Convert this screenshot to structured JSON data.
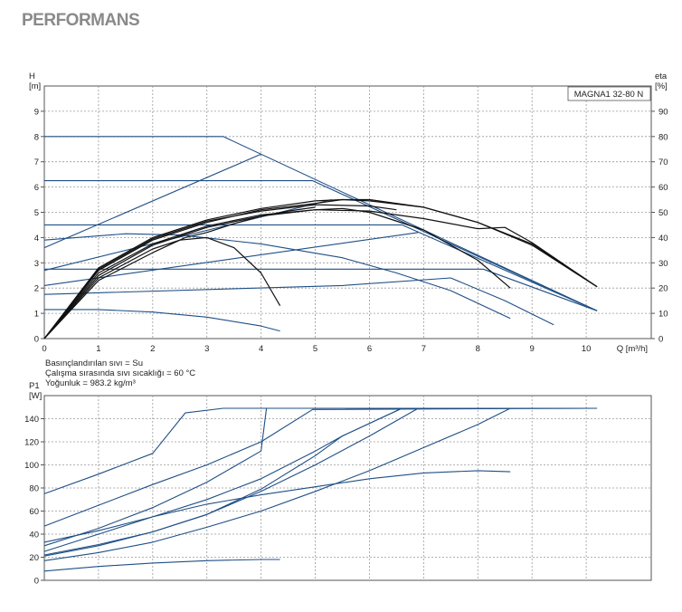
{
  "page": {
    "title": "PERFORMANS"
  },
  "conditions": [
    "Basınçlandırılan sıvı = Su",
    "Çalışma sırasında sıvı sıcaklığı = 60 °C",
    "Yoğunluk = 983.2 kg/m³"
  ],
  "colors": {
    "curve_blue": "#1f4f86",
    "curve_black": "#111111",
    "grid": "#999999"
  },
  "chart_data": [
    {
      "type": "line",
      "id": "head-chart",
      "model_label": "MAGNA1 32-80 N",
      "ylabel": "H\n[m]",
      "y2label": "eta\n[%]",
      "xlabel": "Q [m³/h]",
      "xlim": [
        0,
        11.2
      ],
      "ylim": [
        0,
        10
      ],
      "y2lim": [
        0,
        100
      ],
      "x_ticks": [
        0,
        1,
        2,
        3,
        4,
        5,
        6,
        7,
        8,
        9,
        10
      ],
      "y_ticks": [
        0,
        1,
        2,
        3,
        4,
        5,
        6,
        7,
        8,
        9
      ],
      "y2_ticks": [
        0,
        10,
        20,
        30,
        40,
        50,
        60,
        70,
        80,
        90
      ],
      "grid": true,
      "series": [
        {
          "color": "#1f4f86",
          "points": [
            [
              0,
              8.0
            ],
            [
              3.3,
              8.0
            ],
            [
              10.2,
              1.1
            ]
          ]
        },
        {
          "color": "#1f4f86",
          "points": [
            [
              0,
              6.25
            ],
            [
              4.95,
              6.25
            ],
            [
              10.2,
              1.1
            ]
          ]
        },
        {
          "color": "#1f4f86",
          "points": [
            [
              0,
              4.5
            ],
            [
              6.6,
              4.5
            ],
            [
              10.2,
              1.1
            ]
          ]
        },
        {
          "color": "#1f4f86",
          "points": [
            [
              0,
              2.75
            ],
            [
              8.1,
              2.75
            ],
            [
              10.2,
              1.1
            ]
          ]
        },
        {
          "color": "#1f4f86",
          "points": [
            [
              0,
              3.9
            ],
            [
              1.5,
              4.15
            ],
            [
              2.5,
              4.1
            ],
            [
              4,
              3.75
            ],
            [
              5.5,
              3.2
            ],
            [
              6.5,
              2.6
            ],
            [
              7.5,
              1.9
            ],
            [
              8.6,
              0.8
            ]
          ]
        },
        {
          "color": "#1f4f86",
          "points": [
            [
              0,
              1.15
            ],
            [
              1,
              1.15
            ],
            [
              2,
              1.05
            ],
            [
              3,
              0.85
            ],
            [
              4,
              0.5
            ],
            [
              4.35,
              0.3
            ]
          ]
        },
        {
          "color": "#1f4f86",
          "points": [
            [
              0,
              3.6
            ],
            [
              4.0,
              7.3
            ]
          ]
        },
        {
          "color": "#1f4f86",
          "points": [
            [
              0,
              2.7
            ],
            [
              5.3,
              5.5
            ]
          ]
        },
        {
          "color": "#1f4f86",
          "points": [
            [
              0,
              2.1
            ],
            [
              6.9,
              4.2
            ]
          ]
        },
        {
          "color": "#1f4f86",
          "points": [
            [
              0,
              1.75
            ],
            [
              5.5,
              2.1
            ],
            [
              7.5,
              2.4
            ],
            [
              8.5,
              1.5
            ],
            [
              9.4,
              0.55
            ]
          ]
        },
        {
          "color": "#111111",
          "points": [
            [
              0,
              0
            ],
            [
              1,
              2.6
            ],
            [
              2,
              3.75
            ],
            [
              3,
              4.45
            ],
            [
              4,
              4.9
            ],
            [
              5,
              5.1
            ],
            [
              6,
              5.05
            ],
            [
              7,
              4.75
            ],
            [
              8,
              4.35
            ],
            [
              8.5,
              4.4
            ],
            [
              9,
              3.8
            ],
            [
              10.2,
              2.05
            ]
          ]
        },
        {
          "color": "#111111",
          "points": [
            [
              0,
              0
            ],
            [
              1,
              2.7
            ],
            [
              2,
              3.9
            ],
            [
              3,
              4.6
            ],
            [
              4,
              5.1
            ],
            [
              5,
              5.35
            ],
            [
              5.5,
              5.5
            ],
            [
              6,
              5.5
            ],
            [
              7,
              5.2
            ],
            [
              8,
              4.6
            ],
            [
              9,
              3.7
            ],
            [
              10.2,
              2.05
            ]
          ]
        },
        {
          "color": "#111111",
          "points": [
            [
              0,
              0
            ],
            [
              1,
              2.8
            ],
            [
              2,
              4.0
            ],
            [
              3,
              4.7
            ],
            [
              4,
              5.15
            ],
            [
              5,
              5.45
            ],
            [
              5.5,
              5.5
            ],
            [
              6,
              5.45
            ],
            [
              7,
              5.2
            ],
            [
              8,
              4.6
            ],
            [
              9,
              3.75
            ],
            [
              10.2,
              2.05
            ]
          ]
        },
        {
          "color": "#111111",
          "points": [
            [
              0,
              0
            ],
            [
              1,
              2.5
            ],
            [
              2,
              3.7
            ],
            [
              3,
              4.4
            ],
            [
              4,
              4.85
            ],
            [
              5,
              5.1
            ],
            [
              5.5,
              5.15
            ],
            [
              6,
              5.0
            ],
            [
              7,
              4.3
            ],
            [
              8,
              3.1
            ],
            [
              8.6,
              2.0
            ]
          ]
        },
        {
          "color": "#111111",
          "points": [
            [
              0,
              0
            ],
            [
              1,
              2.3
            ],
            [
              2,
              3.4
            ],
            [
              2.6,
              4.0
            ],
            [
              3,
              4.2
            ],
            [
              3.5,
              4.55
            ],
            [
              4,
              4.85
            ],
            [
              4.5,
              5.05
            ],
            [
              5,
              5.2
            ]
          ]
        },
        {
          "color": "#111111",
          "points": [
            [
              0,
              0
            ],
            [
              1,
              2.4
            ],
            [
              2,
              3.55
            ],
            [
              2.5,
              3.9
            ],
            [
              3,
              4.0
            ],
            [
              3.5,
              3.6
            ],
            [
              4,
              2.6
            ],
            [
              4.35,
              1.3
            ]
          ]
        },
        {
          "color": "#111111",
          "points": [
            [
              0,
              0
            ],
            [
              1,
              2.75
            ],
            [
              2,
              3.95
            ],
            [
              3,
              4.65
            ],
            [
              4,
              5.05
            ],
            [
              5,
              5.3
            ],
            [
              6,
              5.25
            ],
            [
              6.5,
              5.1
            ]
          ]
        }
      ]
    },
    {
      "type": "line",
      "id": "power-chart",
      "ylabel": "P1\n[W]",
      "xlim": [
        0,
        11.2
      ],
      "ylim": [
        0,
        160
      ],
      "x_ticks": [
        0,
        1,
        2,
        3,
        4,
        5,
        6,
        7,
        8,
        9,
        10
      ],
      "y_ticks": [
        0,
        20,
        40,
        60,
        80,
        100,
        120,
        140
      ],
      "grid": true,
      "series": [
        {
          "color": "#1f4f86",
          "points": [
            [
              0,
              75
            ],
            [
              1,
              92
            ],
            [
              2,
              110
            ],
            [
              2.6,
              145
            ],
            [
              3.3,
              149
            ],
            [
              10.2,
              149
            ]
          ]
        },
        {
          "color": "#1f4f86",
          "points": [
            [
              0,
              47
            ],
            [
              1,
              65
            ],
            [
              2,
              83
            ],
            [
              3,
              100
            ],
            [
              4,
              120
            ],
            [
              4.95,
              148
            ],
            [
              10.2,
              149
            ]
          ]
        },
        {
          "color": "#1f4f86",
          "points": [
            [
              0,
              30
            ],
            [
              1,
              45
            ],
            [
              2,
              63
            ],
            [
              3,
              85
            ],
            [
              4,
              112
            ],
            [
              4.1,
              149
            ]
          ]
        },
        {
          "color": "#1f4f86",
          "points": [
            [
              0,
              33
            ],
            [
              1,
              43
            ],
            [
              2,
              55
            ],
            [
              3,
              70
            ],
            [
              4,
              88
            ],
            [
              5,
              112
            ],
            [
              5.5,
              125
            ],
            [
              6.6,
              149
            ]
          ]
        },
        {
          "color": "#1f4f86",
          "points": [
            [
              0,
              22
            ],
            [
              1,
              31
            ],
            [
              2,
              42
            ],
            [
              3,
              57
            ],
            [
              4,
              77
            ],
            [
              5,
              100
            ],
            [
              6,
              125
            ],
            [
              6.9,
              149
            ]
          ]
        },
        {
          "color": "#1f4f86",
          "points": [
            [
              0,
              21
            ],
            [
              1,
              30
            ],
            [
              2,
              42
            ],
            [
              3,
              57
            ],
            [
              4,
              79
            ],
            [
              5,
              108
            ],
            [
              5.5,
              125
            ],
            [
              6.6,
              149
            ]
          ]
        },
        {
          "color": "#1f4f86",
          "points": [
            [
              0,
              17
            ],
            [
              1,
              24
            ],
            [
              2,
              33
            ],
            [
              3,
              46
            ],
            [
              4,
              60
            ],
            [
              5,
              77
            ],
            [
              6,
              95
            ],
            [
              7,
              115
            ],
            [
              8,
              135
            ],
            [
              8.6,
              149
            ]
          ]
        },
        {
          "color": "#1f4f86",
          "points": [
            [
              0,
              25
            ],
            [
              1,
              40
            ],
            [
              2,
              55
            ],
            [
              3,
              66
            ],
            [
              4,
              74
            ],
            [
              5,
              81
            ],
            [
              6,
              88
            ],
            [
              7,
              93
            ],
            [
              8,
              95
            ],
            [
              8.6,
              94
            ]
          ]
        },
        {
          "color": "#1f4f86",
          "points": [
            [
              0,
              8
            ],
            [
              1,
              12
            ],
            [
              2,
              15
            ],
            [
              3,
              17
            ],
            [
              4,
              18
            ],
            [
              4.35,
              18
            ]
          ]
        }
      ]
    }
  ]
}
